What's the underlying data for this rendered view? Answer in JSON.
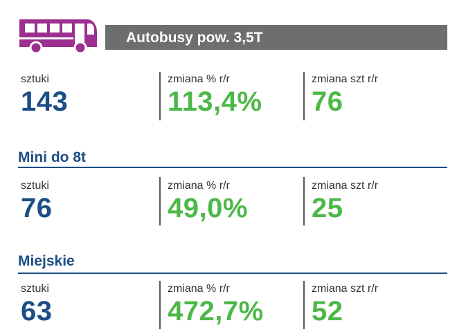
{
  "header": {
    "title": "Autobusy pow. 3,5T",
    "icon": "bus-icon",
    "icon_color": "#9c2f8f",
    "bar_color": "#6d6e70"
  },
  "colors": {
    "label_blue": "#1b4e86",
    "value_blue": "#1b4e86",
    "value_green": "#4cb848"
  },
  "sections": [
    {
      "title": "",
      "stats": [
        {
          "label": "sztuki",
          "value": "143"
        },
        {
          "label": "zmiana % r/r",
          "value": "113,4%"
        },
        {
          "label": "zmiana szt r/r",
          "value": "76"
        }
      ]
    },
    {
      "title": "Mini do 8t",
      "stats": [
        {
          "label": "sztuki",
          "value": "76"
        },
        {
          "label": "zmiana % r/r",
          "value": "49,0%"
        },
        {
          "label": "zmiana szt r/r",
          "value": "25"
        }
      ]
    },
    {
      "title": "Miejskie",
      "stats": [
        {
          "label": "sztuki",
          "value": "63"
        },
        {
          "label": "zmiana % r/r",
          "value": "472,7%"
        },
        {
          "label": "zmiana szt r/r",
          "value": "52"
        }
      ]
    }
  ]
}
